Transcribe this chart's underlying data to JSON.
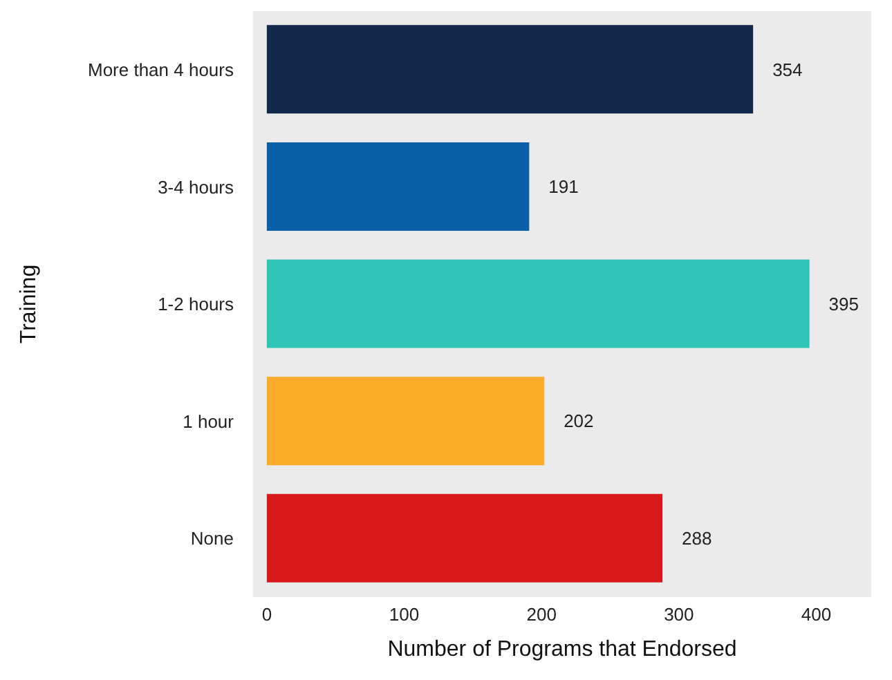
{
  "chart_data": {
    "type": "bar",
    "orientation": "horizontal",
    "xlabel": "Number of Programs that Endorsed",
    "ylabel": "Training",
    "categories": [
      "More than 4 hours",
      "3-4 hours",
      "1-2 hours",
      "1 hour",
      "None"
    ],
    "values": [
      354,
      191,
      395,
      202,
      288
    ],
    "colors": [
      "#13294b",
      "#0b5ea8",
      "#2ec4b6",
      "#fcab2a",
      "#d7191c"
    ],
    "xlim": [
      -10,
      440
    ],
    "xticks": [
      0,
      100,
      200,
      300,
      400
    ],
    "data_labels": true,
    "grid": false
  }
}
